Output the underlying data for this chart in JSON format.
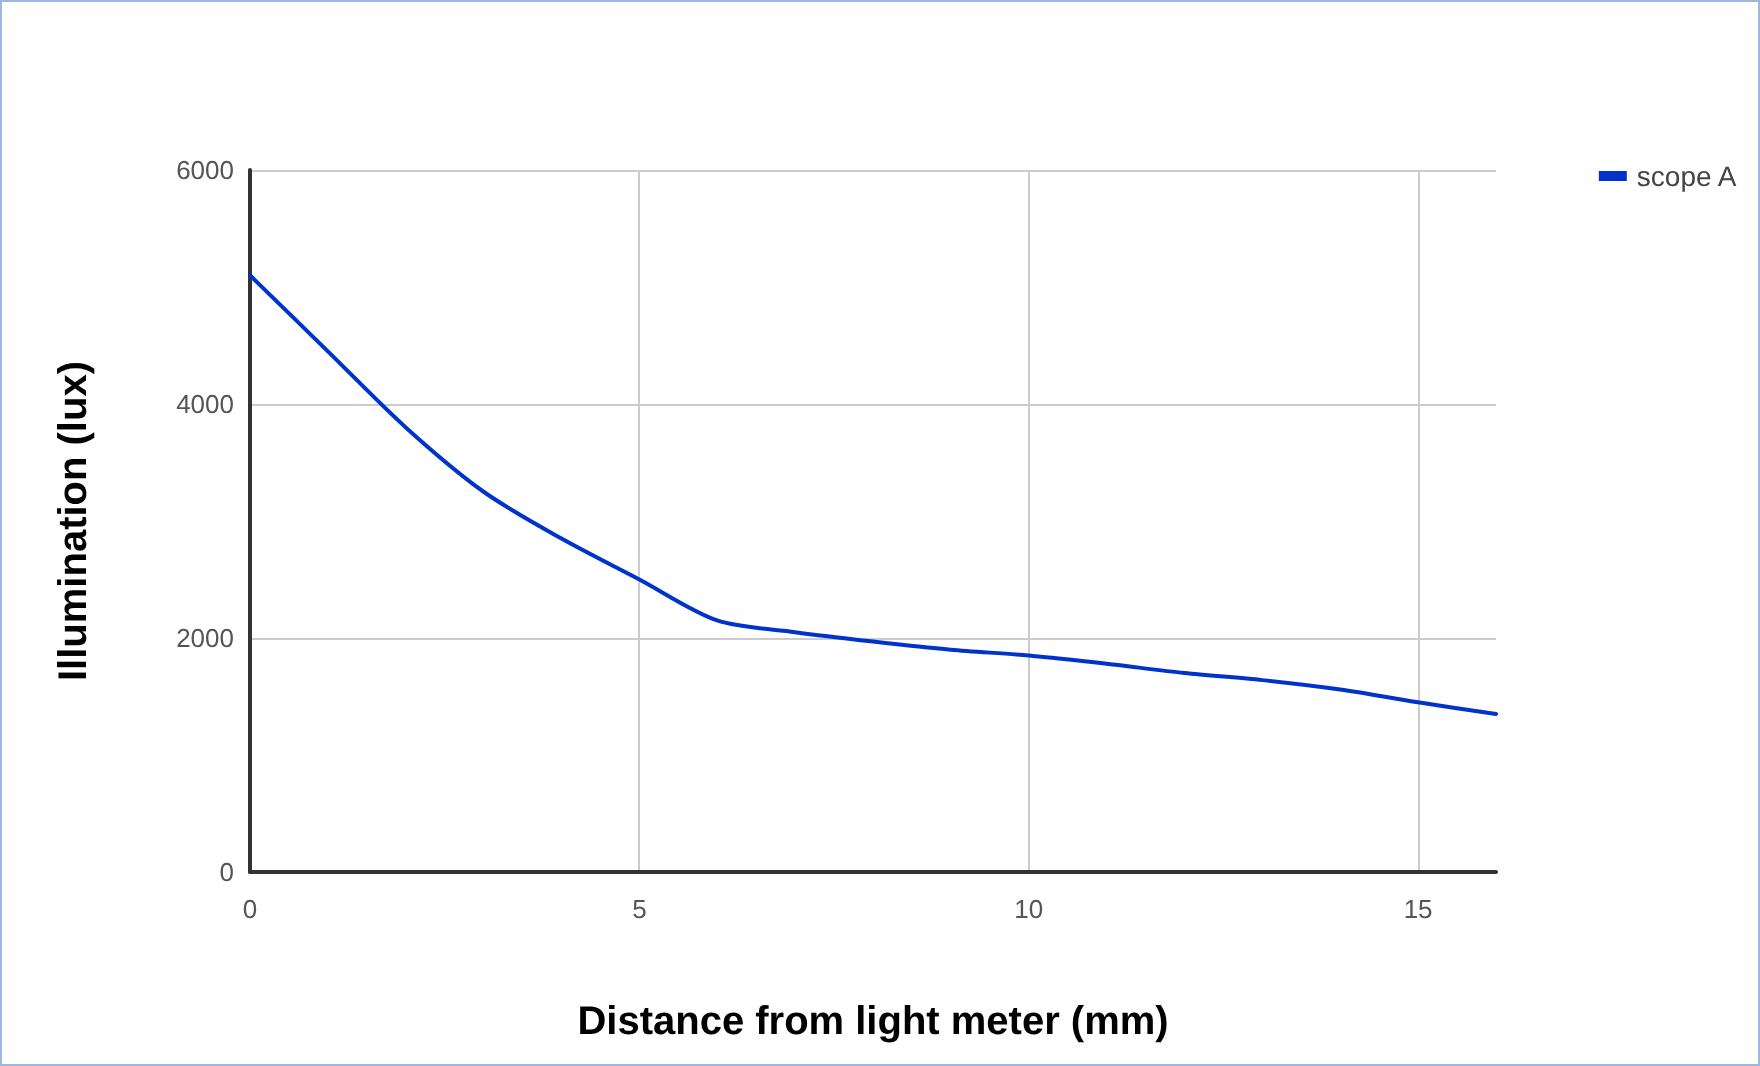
{
  "chart_data": {
    "type": "line",
    "xlabel": "Distance from light meter (mm)",
    "ylabel": "Illumination (lux)",
    "x": [
      0,
      1,
      2,
      3,
      4,
      5,
      6,
      7,
      8,
      9,
      10,
      11,
      12,
      13,
      14,
      15,
      16
    ],
    "series": [
      {
        "name": "scope A",
        "color": "#0033cc",
        "values": [
          5100,
          4450,
          3800,
          3250,
          2850,
          2500,
          2150,
          2050,
          1970,
          1900,
          1850,
          1780,
          1700,
          1640,
          1560,
          1450,
          1350
        ]
      }
    ],
    "xlim": [
      0,
      16
    ],
    "xticks": [
      0,
      5,
      10,
      15
    ],
    "ylim": [
      0,
      6000
    ],
    "yticks": [
      0,
      2000,
      4000,
      6000
    ],
    "grid": true,
    "legend": "top right",
    "marker": "none",
    "line_style": "solid"
  }
}
